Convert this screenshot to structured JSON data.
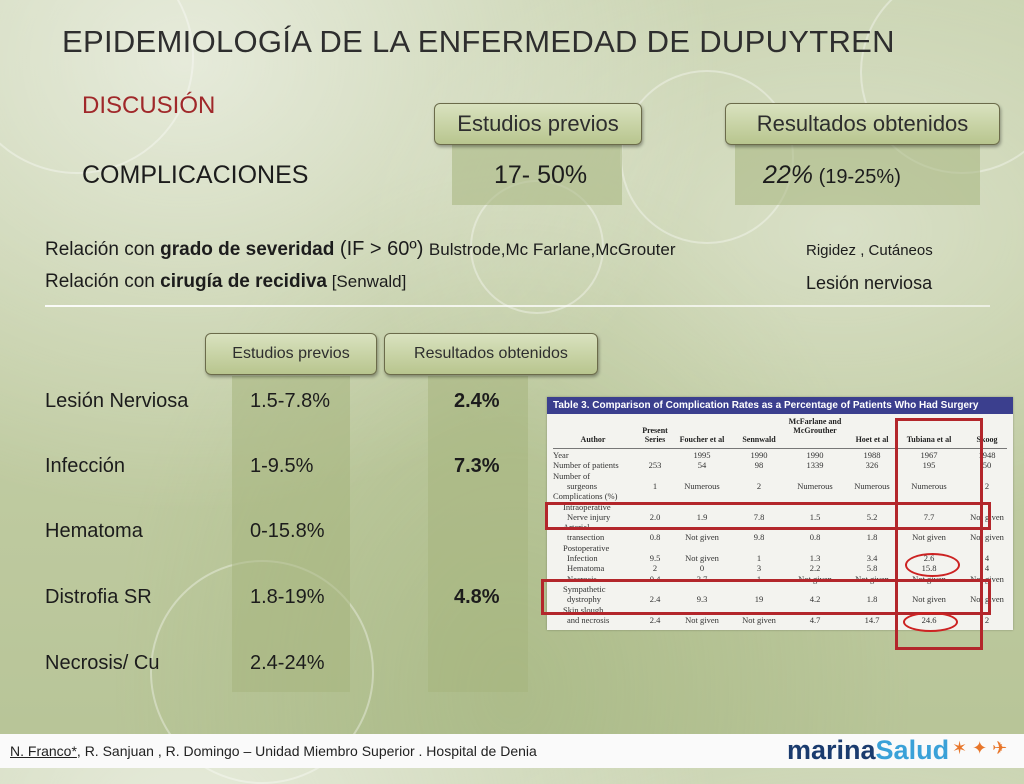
{
  "title": "EPIDEMIOLOGÍA DE LA ENFERMEDAD DE DUPUYTREN",
  "subtitle": "DISCUSIÓN",
  "top_tabs": {
    "previous": "Estudios previos",
    "results": "Resultados obtenidos"
  },
  "complications": {
    "label": "COMPLICACIONES",
    "previous": "17- 50%",
    "result_main": "22%",
    "result_range": " (19-25%)"
  },
  "relations": [
    {
      "a": "Relación con ",
      "b": "grado de severidad",
      "c": " (IF > 60º) ",
      "d": "Bulstrode,Mc Farlane,McGrouter",
      "right": "Rigidez , Cutáneos"
    },
    {
      "a": "Relación  con ",
      "b": "cirugía de recidiva",
      "c": " [Senwald]",
      "d": "",
      "right": "Lesión nerviosa"
    }
  ],
  "small_tabs": {
    "previous": "Estudios previos",
    "results": "Resultados obtenidos"
  },
  "rows": [
    {
      "label": "Lesión Nerviosa",
      "previous": "1.5-7.8%",
      "result": "2.4%"
    },
    {
      "label": "Infección",
      "previous": "1-9.5%",
      "result": "7.3%"
    },
    {
      "label": "Hematoma",
      "previous": "0-15.8%",
      "result": ""
    },
    {
      "label": "Distrofia SR",
      "previous": "1.8-19%",
      "result": "4.8%"
    },
    {
      "label": "Necrosis/ Cu",
      "previous": "2.4-24%",
      "result": ""
    }
  ],
  "table3": {
    "caption": "Table 3.   Comparison of Complication Rates as a Percentage of Patients Who Had Surgery",
    "headers": [
      "Author",
      "Present Series",
      "Foucher et al",
      "Sennwald",
      "McFarlane and McGrouther",
      "Hoet et al",
      "Tubiana et al",
      "Skoog"
    ],
    "rows": [
      [
        "Year",
        "",
        "1995",
        "1990",
        "1990",
        "1988",
        "1967",
        "1948"
      ],
      [
        "Number of patients",
        "253",
        "54",
        "98",
        "1339",
        "326",
        "195",
        "50"
      ],
      [
        "Number of",
        "",
        "",
        "",
        "",
        "",
        "",
        ""
      ],
      [
        "surgeons",
        "1",
        "Numerous",
        "2",
        "Numerous",
        "Numerous",
        "Numerous",
        "2"
      ],
      [
        "Complications (%)",
        "",
        "",
        "",
        "",
        "",
        "",
        ""
      ],
      [
        "Intraoperative",
        "",
        "",
        "",
        "",
        "",
        "",
        ""
      ],
      [
        "Nerve injury",
        "2.0",
        "1.9",
        "7.8",
        "1.5",
        "5.2",
        "7.7",
        "Not given"
      ],
      [
        "Arterial",
        "",
        "",
        "",
        "",
        "",
        "",
        ""
      ],
      [
        "transection",
        "0.8",
        "Not given",
        "9.8",
        "0.8",
        "1.8",
        "Not given",
        "Not given"
      ],
      [
        "Postoperative",
        "",
        "",
        "",
        "",
        "",
        "",
        ""
      ],
      [
        "Infection",
        "9.5",
        "Not given",
        "1",
        "1.3",
        "3.4",
        "2.6",
        "4"
      ],
      [
        "Hematoma",
        "2",
        "0",
        "3",
        "2.2",
        "5.8",
        "15.8",
        "4"
      ],
      [
        "Necrosis",
        "0.4",
        "3.7",
        "1",
        "Not given",
        "Not given",
        "Not given",
        "Not given"
      ],
      [
        "Sympathetic",
        "",
        "",
        "",
        "",
        "",
        "",
        ""
      ],
      [
        "dystrophy",
        "2.4",
        "9.3",
        "19",
        "4.2",
        "1.8",
        "Not given",
        "Not given"
      ],
      [
        "Skin slough",
        "",
        "",
        "",
        "",
        "",
        "",
        ""
      ],
      [
        "and necrosis",
        "2.4",
        "Not given",
        "Not given",
        "4.7",
        "14.7",
        "24.6",
        "2"
      ]
    ]
  },
  "footer": {
    "authors": "N. Franco*",
    "rest": ", R. Sanjuan , R. Domingo – Unidad Miembro Superior . Hospital de Denia",
    "logo_a": "marina",
    "logo_b": "Salud"
  },
  "colors": {
    "title": "#2e2e2e",
    "subtitle": "#a0282a",
    "highlight": "#b3262b",
    "table_header": "#3b3f8e"
  }
}
